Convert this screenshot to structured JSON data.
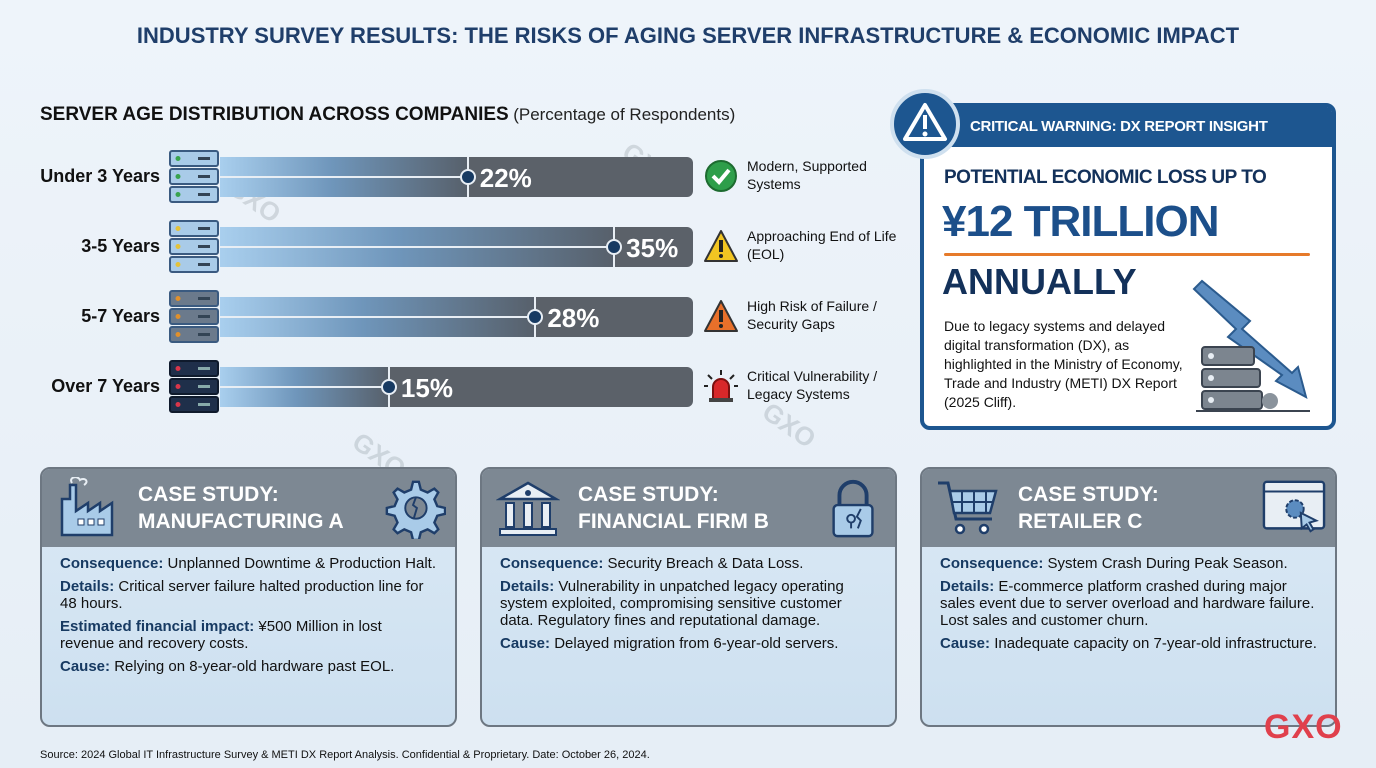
{
  "title": "INDUSTRY SURVEY RESULTS: THE RISKS OF AGING SERVER INFRASTRUCTURE & ECONOMIC IMPACT",
  "chart_data": {
    "type": "bar",
    "orientation": "horizontal",
    "title": "SERVER AGE DISTRIBUTION ACROSS COMPANIES",
    "subtitle": "(Percentage of Respondents)",
    "categories": [
      "Under 3 Years",
      "3-5 Years",
      "5-7 Years",
      "Over 7 Years"
    ],
    "values": [
      22,
      35,
      28,
      15
    ],
    "value_labels": [
      "22%",
      "35%",
      "28%",
      "15%"
    ],
    "status": [
      {
        "text": "Modern, Supported Systems",
        "icon": "check-circle-icon",
        "color": "#2e9e4a"
      },
      {
        "text": "Approaching End of Life (EOL)",
        "icon": "warning-triangle-icon",
        "color": "#f2c522"
      },
      {
        "text": "High Risk of Failure / Security Gaps",
        "icon": "warning-triangle-icon",
        "color": "#e8702a"
      },
      {
        "text": "Critical Vulnerability / Legacy Systems",
        "icon": "siren-icon",
        "color": "#d8282a"
      }
    ],
    "server_led_colors": [
      "#3aa34e",
      "#e3c23a",
      "#e0902c",
      "#d8364a"
    ]
  },
  "warning": {
    "header": "CRITICAL WARNING: DX REPORT INSIGHT",
    "line1": "POTENTIAL ECONOMIC LOSS UP TO",
    "amount": "¥12 TRILLION",
    "line3": "ANNUALLY",
    "body": "Due to legacy systems and delayed digital transformation (DX), as highlighted in the Ministry of Economy, Trade and Industry (METI) DX Report (2025 Cliff)."
  },
  "cases": [
    {
      "title1": "CASE STUDY:",
      "title2": "MANUFACTURING A",
      "icons": [
        "factory-icon",
        "broken-gear-icon"
      ],
      "items": [
        [
          "Consequence:",
          "Unplanned Downtime & Production Halt."
        ],
        [
          "Details:",
          "Critical server failure halted production line for 48 hours."
        ],
        [
          "Estimated financial impact:",
          "¥500 Million in lost revenue and recovery costs."
        ],
        [
          "Cause:",
          "Relying on 8-year-old hardware past EOL."
        ]
      ]
    },
    {
      "title1": "CASE STUDY:",
      "title2": "FINANCIAL FIRM B",
      "icons": [
        "bank-icon",
        "broken-lock-icon"
      ],
      "items": [
        [
          "Consequence:",
          "Security Breach & Data Loss."
        ],
        [
          "Details:",
          "Vulnerability in unpatched legacy operating system exploited, compromising sensitive customer data. Regulatory fines and reputational damage."
        ],
        [
          "Cause:",
          "Delayed migration from 6-year-old servers."
        ]
      ]
    },
    {
      "title1": "CASE STUDY:",
      "title2": "RETAILER C",
      "icons": [
        "shopping-cart-icon",
        "browser-gear-icon"
      ],
      "items": [
        [
          "Consequence:",
          "System Crash During Peak Season."
        ],
        [
          "Details:",
          "E-commerce platform crashed during major sales event due to server overload and hardware failure. Lost sales and customer churn."
        ],
        [
          "Cause:",
          "Inadequate capacity on 7-year-old infrastructure."
        ]
      ]
    }
  ],
  "footer": "Source: 2024 Global IT Infrastructure Survey & METI DX Report Analysis. Confidential & Proprietary. Date: October 26, 2024.",
  "logo": "GXO",
  "colors": {
    "title": "#1f3e6a",
    "warning_blue": "#1d5690",
    "accent_orange": "#e67a2a",
    "logo_red": "#e0404c"
  }
}
